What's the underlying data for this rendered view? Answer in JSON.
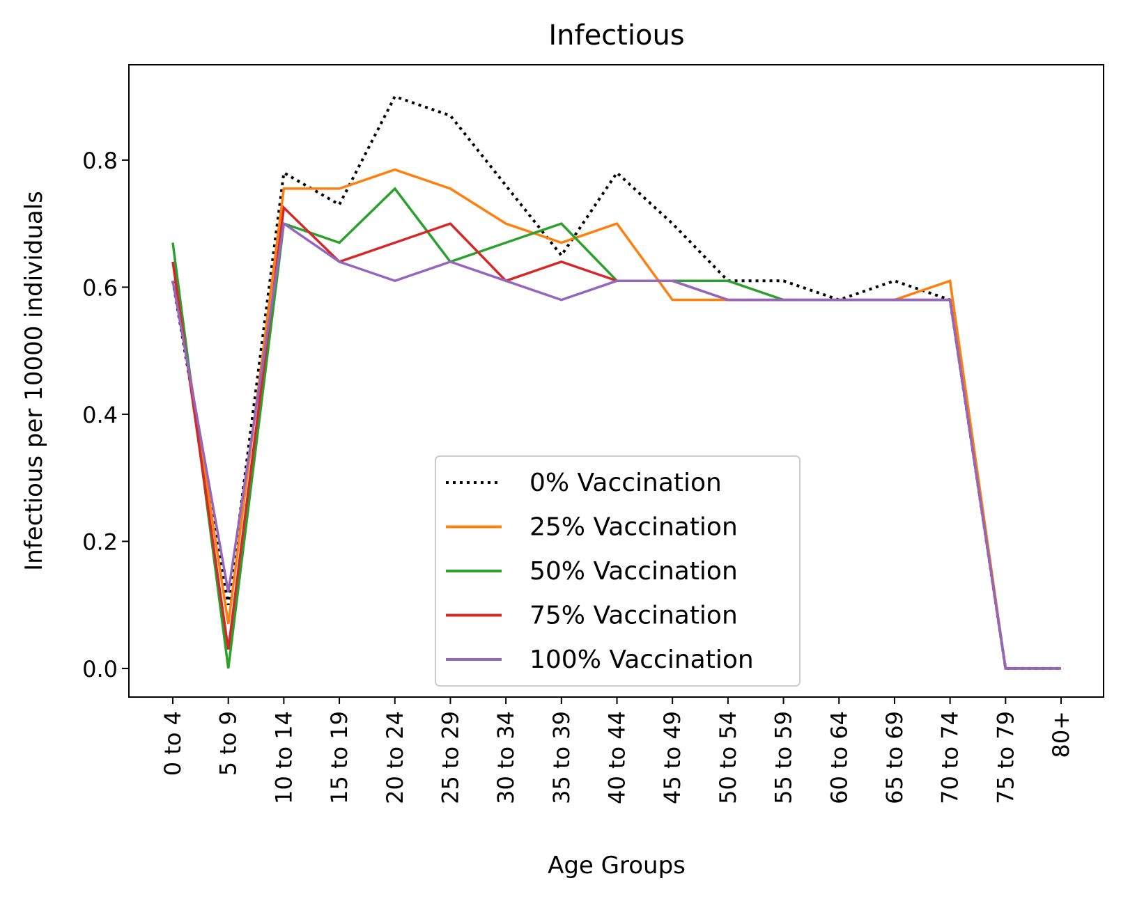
{
  "chart_data": {
    "type": "line",
    "title": "Infectious",
    "xlabel": "Age Groups",
    "ylabel": "Infectious per 10000 individuals",
    "ylim": [
      -0.045,
      0.95
    ],
    "yticks": [
      "0.0",
      "0.2",
      "0.4",
      "0.6",
      "0.8"
    ],
    "ytick_values": [
      0.0,
      0.2,
      0.4,
      0.6,
      0.8
    ],
    "categories": [
      "0 to 4",
      "5 to 9",
      "10 to 14",
      "15 to 19",
      "20 to 24",
      "25 to 29",
      "30 to 34",
      "35 to 39",
      "40 to 44",
      "45 to 49",
      "50 to 54",
      "55 to 59",
      "60 to 64",
      "65 to 69",
      "70 to 74",
      "75 to 79",
      "80+"
    ],
    "legend_position": "lower-center",
    "series": [
      {
        "name": "0% Vaccination",
        "color": "#000000",
        "style": "dotted",
        "values": [
          0.61,
          0.1,
          0.78,
          0.73,
          0.9,
          0.87,
          0.76,
          0.65,
          0.78,
          0.7,
          0.61,
          0.61,
          0.58,
          0.61,
          0.58,
          0.0,
          0.0
        ]
      },
      {
        "name": "25% Vaccination",
        "color": "#ff7f0e",
        "style": "solid",
        "values": [
          0.64,
          0.07,
          0.755,
          0.755,
          0.785,
          0.755,
          0.7,
          0.67,
          0.7,
          0.58,
          0.58,
          0.58,
          0.58,
          0.58,
          0.61,
          0.0,
          0.0
        ]
      },
      {
        "name": "50% Vaccination",
        "color": "#2ca02c",
        "style": "solid",
        "values": [
          0.67,
          0.0,
          0.7,
          0.67,
          0.755,
          0.64,
          0.67,
          0.7,
          0.61,
          0.61,
          0.61,
          0.58,
          0.58,
          0.58,
          0.58,
          0.0,
          0.0
        ]
      },
      {
        "name": "75% Vaccination",
        "color": "#d62728",
        "style": "solid",
        "values": [
          0.64,
          0.03,
          0.725,
          0.64,
          0.67,
          0.7,
          0.61,
          0.64,
          0.61,
          0.61,
          0.58,
          0.58,
          0.58,
          0.58,
          0.58,
          0.0,
          0.0
        ]
      },
      {
        "name": "100% Vaccination",
        "color": "#9467bd",
        "style": "solid",
        "values": [
          0.61,
          0.12,
          0.7,
          0.64,
          0.61,
          0.64,
          0.61,
          0.58,
          0.61,
          0.61,
          0.58,
          0.58,
          0.58,
          0.58,
          0.58,
          0.0,
          0.0
        ]
      }
    ]
  }
}
